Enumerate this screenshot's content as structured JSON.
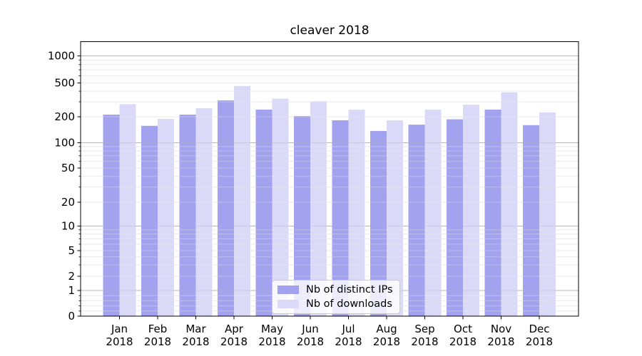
{
  "chart_data": {
    "type": "bar",
    "title": "cleaver 2018",
    "categories": [
      "Jan 2018",
      "Feb 2018",
      "Mar 2018",
      "Apr 2018",
      "May 2018",
      "Jun 2018",
      "Jul 2018",
      "Aug 2018",
      "Sep 2018",
      "Oct 2018",
      "Nov 2018",
      "Dec 2018"
    ],
    "series": [
      {
        "name": "Nb of distinct IPs",
        "color": "#a2a2ef",
        "values": [
          212,
          157,
          212,
          312,
          243,
          204,
          182,
          137,
          162,
          187,
          243,
          160
        ]
      },
      {
        "name": "Nb of downloads",
        "color": "#dadaf8",
        "values": [
          282,
          189,
          252,
          460,
          327,
          304,
          242,
          182,
          242,
          277,
          388,
          225
        ]
      }
    ],
    "xlabel": "",
    "ylabel": "",
    "yscale": "symlog",
    "yticks": [
      0,
      1,
      2,
      5,
      10,
      20,
      50,
      100,
      200,
      500,
      1000
    ],
    "ylim": [
      0,
      1500
    ],
    "grid": "both",
    "grid_major_color": "#b5b5b5",
    "grid_minor_color": "#e9e9e9",
    "legend_position": "lower center",
    "legend_background": "rgba(255,255,255,0.8)"
  }
}
